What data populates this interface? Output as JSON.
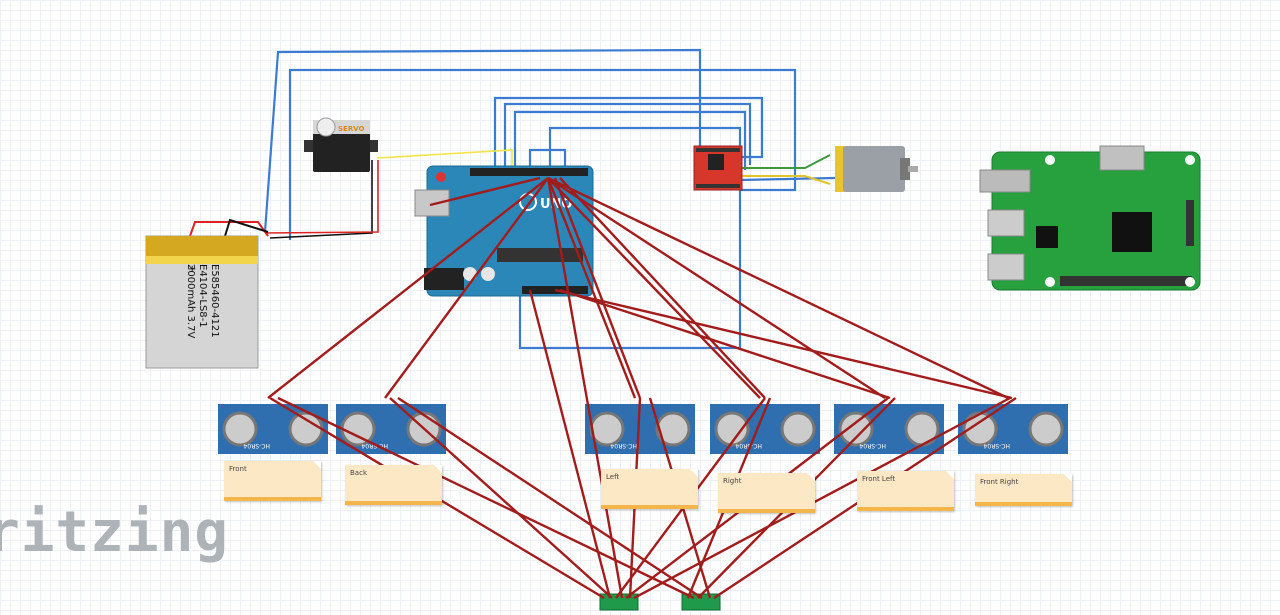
{
  "battery": {
    "label_lines": [
      "E585460-4121",
      "E4104-LS8-1",
      "2000mAh 3.7V"
    ],
    "plus": "+"
  },
  "servo": {
    "label": "SERVO"
  },
  "arduino": {
    "label": "UNO"
  },
  "sensors": [
    {
      "model": "HC-SR04",
      "note": "Front"
    },
    {
      "model": "HC-SR04",
      "note": "Back"
    },
    {
      "model": "HC-SR04",
      "note": "Left"
    },
    {
      "model": "HC-SR04",
      "note": "Right"
    },
    {
      "model": "HC-SR04",
      "note": "Front Left"
    },
    {
      "model": "HC-SR04",
      "note": "Front Right"
    }
  ],
  "brand": "ritzing",
  "colors": {
    "wire_red": "#a31c1c",
    "wire_blue": "#3c7bd2",
    "wire_yellow": "#f2e44a",
    "arduino": "#2b87b8",
    "pi_board": "#27a03e"
  }
}
